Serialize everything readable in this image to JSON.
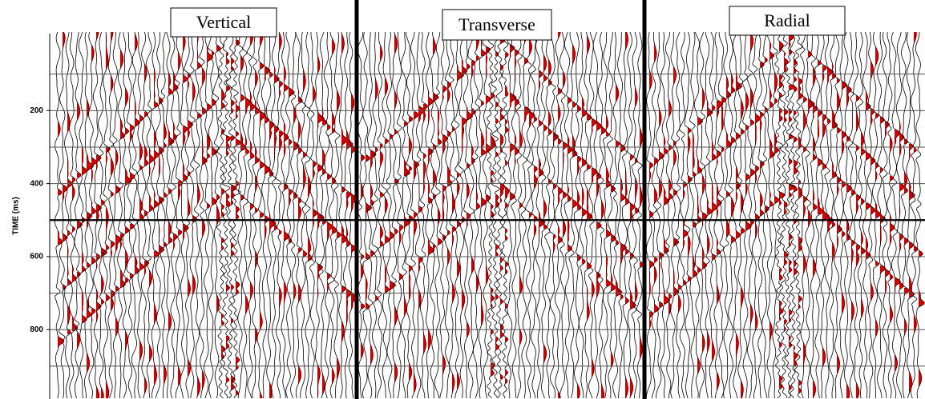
{
  "chart_data": {
    "type": "seismic",
    "panels": [
      "Vertical",
      "Transverse",
      "Radial"
    ],
    "y_label": "TIME (ms)",
    "ylim": [
      0,
      990
    ],
    "yticks": [
      200,
      400,
      600,
      800
    ],
    "grid_lines": [
      100,
      200,
      300,
      400,
      500,
      600,
      700,
      800,
      900
    ],
    "emphasis_line": 500,
    "fill_color": "#d40000"
  }
}
